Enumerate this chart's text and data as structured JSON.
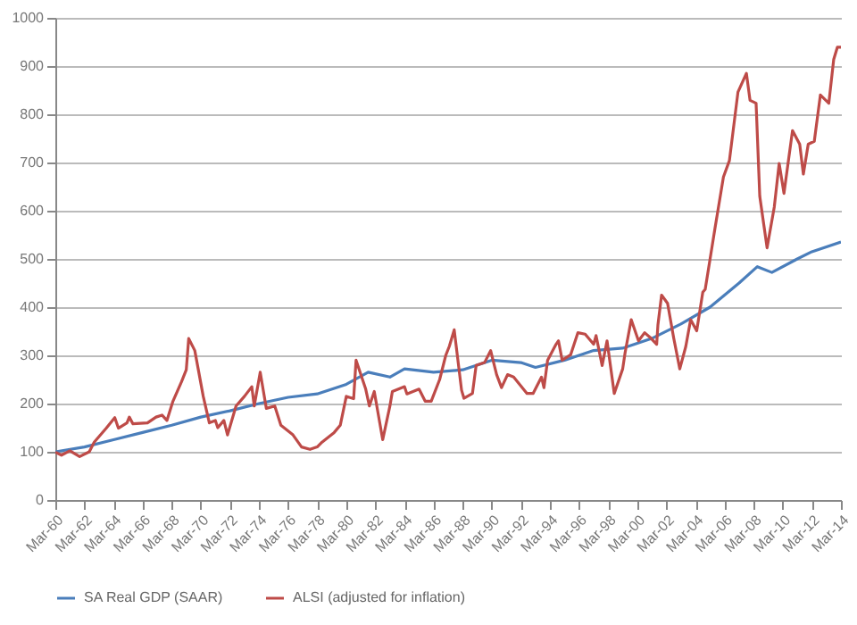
{
  "chart_data": {
    "type": "line",
    "xlim": [
      "1960-03",
      "2014-03"
    ],
    "xticks": [
      {
        "value": "1960-03",
        "label": "Mar-60"
      },
      {
        "value": "1962-03",
        "label": "Mar-62"
      },
      {
        "value": "1964-03",
        "label": "Mar-64"
      },
      {
        "value": "1966-03",
        "label": "Mar-66"
      },
      {
        "value": "1968-03",
        "label": "Mar-68"
      },
      {
        "value": "1970-03",
        "label": "Mar-70"
      },
      {
        "value": "1972-03",
        "label": "Mar-72"
      },
      {
        "value": "1974-03",
        "label": "Mar-74"
      },
      {
        "value": "1976-03",
        "label": "Mar-76"
      },
      {
        "value": "1978-03",
        "label": "Mar-78"
      },
      {
        "value": "1980-03",
        "label": "Mar-80"
      },
      {
        "value": "1982-03",
        "label": "Mar-82"
      },
      {
        "value": "1984-03",
        "label": "Mar-84"
      },
      {
        "value": "1986-03",
        "label": "Mar-86"
      },
      {
        "value": "1988-03",
        "label": "Mar-88"
      },
      {
        "value": "1990-03",
        "label": "Mar-90"
      },
      {
        "value": "1992-03",
        "label": "Mar-92"
      },
      {
        "value": "1994-03",
        "label": "Mar-94"
      },
      {
        "value": "1996-03",
        "label": "Mar-96"
      },
      {
        "value": "1998-03",
        "label": "Mar-98"
      },
      {
        "value": "2000-03",
        "label": "Mar-00"
      },
      {
        "value": "2002-03",
        "label": "Mar-02"
      },
      {
        "value": "2004-03",
        "label": "Mar-04"
      },
      {
        "value": "2006-03",
        "label": "Mar-06"
      },
      {
        "value": "2008-03",
        "label": "Mar-08"
      },
      {
        "value": "2010-03",
        "label": "Mar-10"
      },
      {
        "value": "2012-03",
        "label": "Mar-12"
      },
      {
        "value": "2014-03",
        "label": "Mar-14"
      }
    ],
    "ylim": [
      0,
      1000
    ],
    "yticks": [
      0,
      100,
      200,
      300,
      400,
      500,
      600,
      700,
      800,
      900,
      1000
    ],
    "grid": "y",
    "legend": "bottom",
    "series": [
      {
        "name": "SA Real GDP (SAAR)",
        "color": "#4a7ebb",
        "x": [
          "1960-03",
          "1962-03",
          "1964-03",
          "1966-03",
          "1968-03",
          "1970-03",
          "1972-03",
          "1974-03",
          "1976-03",
          "1978-03",
          "1980-03",
          "1981-09",
          "1983-03",
          "1984-03",
          "1986-03",
          "1988-03",
          "1990-03",
          "1992-03",
          "1993-03",
          "1995-03",
          "1997-03",
          "1999-03",
          "2001-03",
          "2003-03",
          "2005-03",
          "2007-03",
          "2008-06",
          "2009-06",
          "2011-03",
          "2012-03",
          "2014-03"
        ],
        "values": [
          100,
          110,
          125,
          140,
          155,
          172,
          185,
          200,
          213,
          220,
          240,
          265,
          255,
          272,
          265,
          270,
          290,
          285,
          275,
          290,
          310,
          315,
          335,
          365,
          400,
          450,
          484,
          472,
          500,
          515,
          535
        ]
      },
      {
        "name": "ALSI (adjusted for inflation)",
        "color": "#be4b48",
        "x": [
          "1960-03",
          "1960-08",
          "1961-03",
          "1961-11",
          "1962-07",
          "1962-11",
          "1963-09",
          "1964-04",
          "1964-07",
          "1965-02",
          "1965-04",
          "1965-07",
          "1966-07",
          "1967-02",
          "1967-07",
          "1967-11",
          "1968-04",
          "1968-11",
          "1969-03",
          "1969-05",
          "1969-10",
          "1970-05",
          "1970-10",
          "1971-03",
          "1971-05",
          "1971-10",
          "1972-01",
          "1972-08",
          "1973-03",
          "1973-09",
          "1973-11",
          "1974-04",
          "1974-09",
          "1975-04",
          "1975-09",
          "1976-07",
          "1977-02",
          "1977-09",
          "1978-03",
          "1978-07",
          "1979-05",
          "1979-10",
          "1980-03",
          "1980-09",
          "1980-11",
          "1981-07",
          "1981-10",
          "1982-02",
          "1982-09",
          "1983-03",
          "1983-05",
          "1984-03",
          "1984-05",
          "1985-03",
          "1985-08",
          "1986-01",
          "1986-08",
          "1987-01",
          "1987-04",
          "1987-08",
          "1988-02",
          "1988-04",
          "1988-11",
          "1989-02",
          "1989-09",
          "1990-02",
          "1990-07",
          "1990-11",
          "1991-04",
          "1991-09",
          "1992-08",
          "1993-01",
          "1993-08",
          "1993-10",
          "1994-01",
          "1994-08",
          "1994-10",
          "1995-01",
          "1995-08",
          "1996-02",
          "1996-08",
          "1997-03",
          "1997-05",
          "1997-10",
          "1998-02",
          "1998-08",
          "1999-03",
          "1999-05",
          "1999-10",
          "2000-04",
          "2000-09",
          "2001-02",
          "2001-07",
          "2001-08",
          "2001-11",
          "2002-04",
          "2002-09",
          "2003-02",
          "2003-07",
          "2003-11",
          "2004-04",
          "2004-09",
          "2004-11",
          "2005-07",
          "2006-02",
          "2006-07",
          "2007-02",
          "2007-09",
          "2007-12",
          "2008-05",
          "2008-08",
          "2009-02",
          "2009-08",
          "2009-12",
          "2010-04",
          "2010-11",
          "2011-05",
          "2011-08",
          "2011-12",
          "2012-05",
          "2012-10",
          "2013-05",
          "2013-09",
          "2013-12",
          "2014-03"
        ],
        "values": [
          99,
          93,
          102,
          90,
          100,
          120,
          149,
          171,
          149,
          160,
          172,
          158,
          160,
          172,
          176,
          165,
          205,
          245,
          270,
          335,
          310,
          215,
          160,
          165,
          150,
          165,
          135,
          195,
          215,
          235,
          195,
          265,
          190,
          195,
          155,
          135,
          110,
          105,
          110,
          120,
          140,
          155,
          215,
          210,
          290,
          230,
          195,
          225,
          125,
          195,
          225,
          235,
          220,
          230,
          205,
          205,
          250,
          300,
          319,
          353,
          228,
          211,
          221,
          279,
          285,
          310,
          260,
          233,
          260,
          255,
          221,
          221,
          255,
          233,
          290,
          323,
          330,
          290,
          301,
          347,
          344,
          323,
          341,
          279,
          330,
          221,
          272,
          306,
          374,
          330,
          347,
          336,
          323,
          363,
          425,
          408,
          336,
          272,
          318,
          374,
          351,
          431,
          437,
          562,
          670,
          704,
          846,
          885,
          829,
          823,
          630,
          523,
          608,
          698,
          636,
          766,
          738,
          676,
          738,
          744,
          840,
          823,
          914,
          939,
          939
        ]
      }
    ]
  }
}
